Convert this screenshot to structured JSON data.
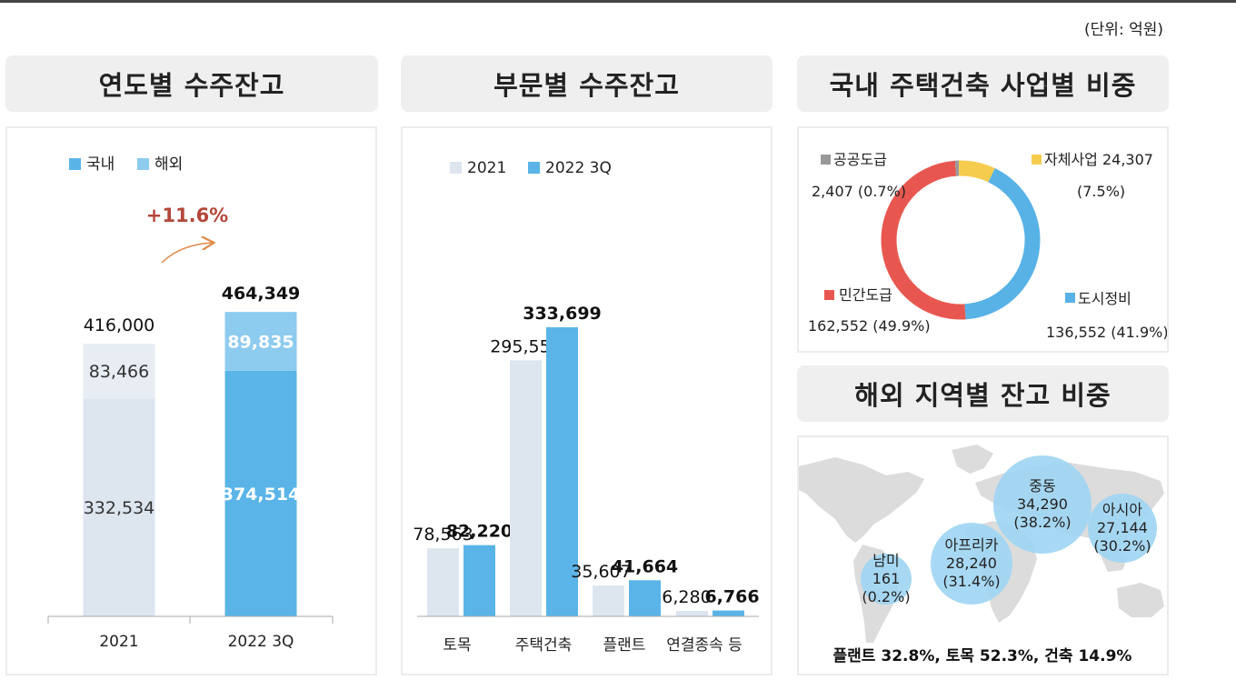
{
  "unit_label": "(단위: 억원)",
  "colors": {
    "domestic": "#5ab4e8",
    "overseas": "#8dcbef",
    "prev_year": "#dde5ef",
    "private": "#e8574f",
    "urban": "#58b2e6",
    "own": "#f6cc4f",
    "public": "#999999",
    "growth": "#b5473a",
    "bubble": "#9ed5f3"
  },
  "panels": {
    "yearly": {
      "title": "연도별 수주잔고"
    },
    "sector": {
      "title": "부문별 수주잔고"
    },
    "housing": {
      "title": "국내 주택건축 사업별 비중"
    },
    "overseas": {
      "title": "해외 지역별 잔고 비중"
    }
  },
  "chart_data": [
    {
      "id": "yearly",
      "type": "bar",
      "stacked": true,
      "categories": [
        "2021",
        "2022 3Q"
      ],
      "series": [
        {
          "name": "국내",
          "values": [
            332534,
            374514
          ],
          "labels": [
            "332,534",
            "374,514"
          ]
        },
        {
          "name": "해외",
          "values": [
            83466,
            89835
          ],
          "labels": [
            "83,466",
            "89,835"
          ]
        }
      ],
      "totals": [
        "416,000",
        "464,349"
      ],
      "growth": "+11.6%",
      "ylim": [
        0,
        520000
      ]
    },
    {
      "id": "sector",
      "type": "bar",
      "categories": [
        "토목",
        "주택건축",
        "플랜트",
        "연결종속 등"
      ],
      "series": [
        {
          "name": "2021",
          "values": [
            78563,
            295550,
            35607,
            6280
          ],
          "labels": [
            "78,563",
            "295,550",
            "35,607",
            "6,280"
          ]
        },
        {
          "name": "2022 3Q",
          "values": [
            82220,
            333699,
            41664,
            6766
          ],
          "labels": [
            "82,220",
            "333,699",
            "41,664",
            "6,766"
          ]
        }
      ],
      "ylim": [
        0,
        390000
      ]
    },
    {
      "id": "housing",
      "type": "pie",
      "donut": true,
      "slices": [
        {
          "name": "도시정비",
          "value": 136552,
          "pct": 41.9,
          "label": "136,552 (41.9%)"
        },
        {
          "name": "민간도급",
          "value": 162552,
          "pct": 49.9,
          "label": "162,552 (49.9%)"
        },
        {
          "name": "공공도급",
          "value": 2407,
          "pct": 0.7,
          "label": "2,407 (0.7%)"
        },
        {
          "name": "자체사업",
          "value": 24307,
          "pct": 7.5,
          "label": "(7.5%)",
          "name_label": "자체사업 24,307"
        }
      ]
    },
    {
      "id": "overseas",
      "type": "scatter",
      "bubble": true,
      "points": [
        {
          "name": "중동",
          "value": "34,290",
          "pct": "(38.2%)"
        },
        {
          "name": "아시아",
          "value": "27,144",
          "pct": "(30.2%)"
        },
        {
          "name": "아프리카",
          "value": "28,240",
          "pct": "(31.4%)"
        },
        {
          "name": "남미",
          "value": "161",
          "pct": "(0.2%)"
        }
      ],
      "footnote": "플랜트 32.8%, 토목 52.3%, 건축 14.9%"
    }
  ]
}
